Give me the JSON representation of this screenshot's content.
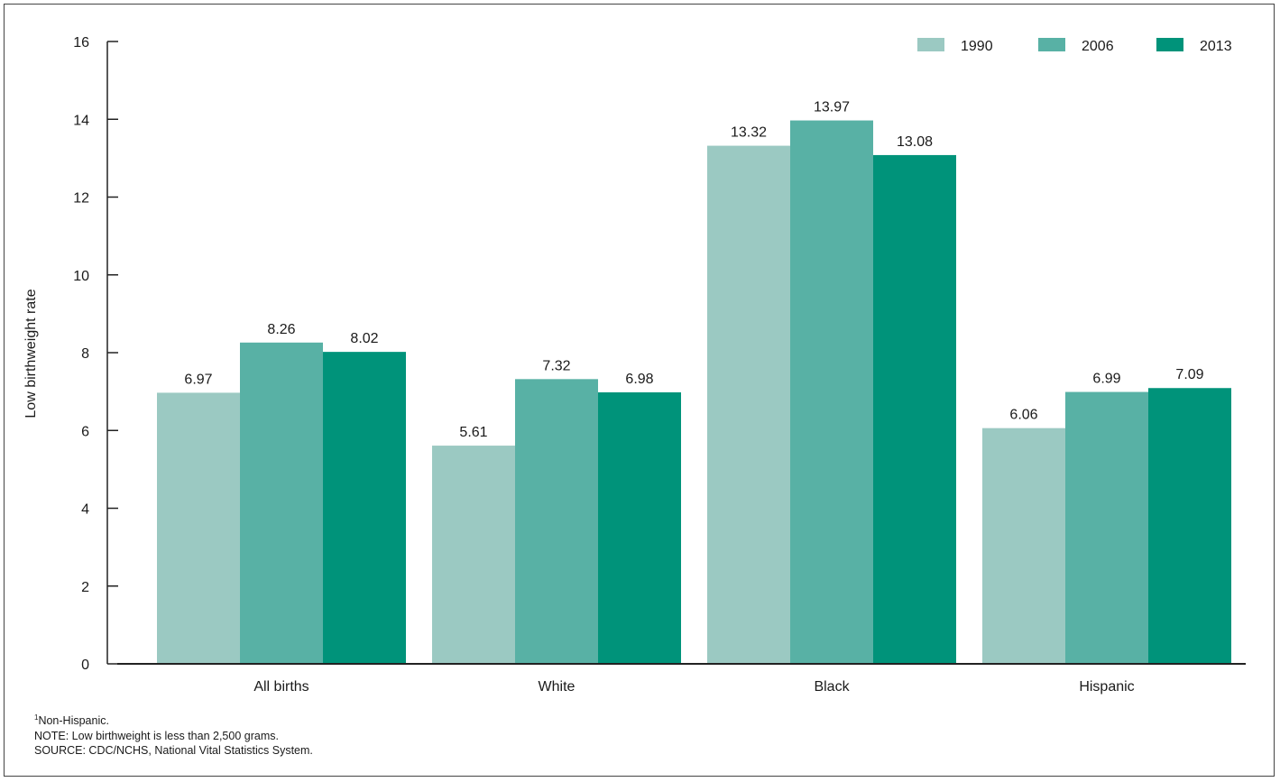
{
  "chart_data": {
    "type": "bar",
    "title": "",
    "xlabel": "",
    "ylabel": "Low birthweight rate",
    "ylim": [
      0,
      16
    ],
    "yticks": [
      0,
      2,
      4,
      6,
      8,
      10,
      12,
      14,
      16
    ],
    "grid": false,
    "legend_position": "top-right",
    "categories": [
      "All births",
      "White",
      "Black",
      "Hispanic"
    ],
    "series": [
      {
        "name": "1990",
        "color": "#9bc9c2",
        "values": [
          6.97,
          5.61,
          13.32,
          6.06
        ],
        "labels": [
          "6.97",
          "5.61",
          "13.32",
          "6.06"
        ]
      },
      {
        "name": "2006",
        "color": "#58b1a5",
        "values": [
          8.26,
          7.32,
          13.97,
          6.99
        ],
        "labels": [
          "8.26",
          "7.32",
          "13.97",
          "6.99"
        ]
      },
      {
        "name": "2013",
        "color": "#00937a",
        "values": [
          8.02,
          6.98,
          13.08,
          7.09
        ],
        "labels": [
          "8.02",
          "6.98",
          "13.08",
          "7.09"
        ]
      }
    ]
  },
  "footnotes": {
    "superscript_mark": "1",
    "nonhispanic": "Non-Hispanic.",
    "note": "NOTE: Low birthweight is less than 2,500 grams.",
    "source": "SOURCE: CDC/NCHS, National Vital Statistics System."
  }
}
